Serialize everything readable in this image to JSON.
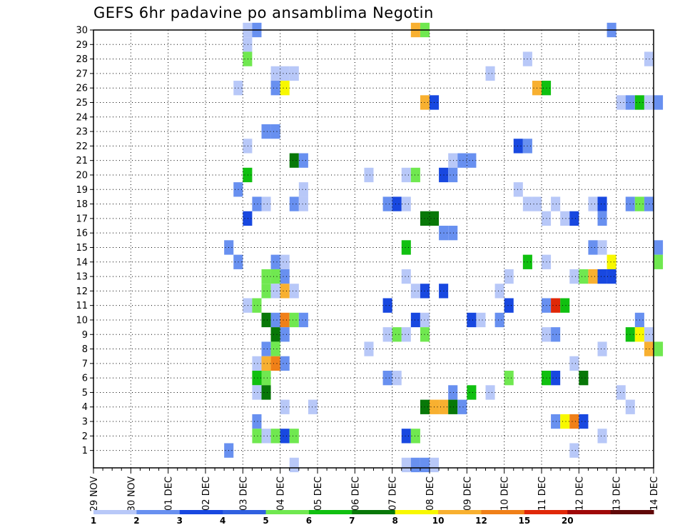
{
  "chart_data": {
    "type": "heatmap",
    "title": "GEFS 6hr padavine po ansamblima Negotin",
    "xlabel": "",
    "ylabel": "",
    "x_tick_labels": [
      "29 NOV",
      "30 NOV",
      "01 DEC",
      "02 DEC",
      "03 DEC",
      "04 DEC",
      "05 DEC",
      "06 DEC",
      "07 DEC",
      "08 DEC",
      "09 DEC",
      "10 DEC",
      "11 DEC",
      "12 DEC",
      "13 DEC",
      "14 DEC"
    ],
    "x_unit": "6-hour step (4 steps per day), step 0 = 29 NOV",
    "xlim": [
      0,
      60
    ],
    "y_tick_labels": [
      "1",
      "2",
      "3",
      "4",
      "5",
      "6",
      "7",
      "8",
      "9",
      "10",
      "11",
      "12",
      "13",
      "14",
      "15",
      "16",
      "17",
      "18",
      "19",
      "20",
      "21",
      "22",
      "23",
      "24",
      "25",
      "26",
      "27",
      "28",
      "29",
      "30"
    ],
    "ylim": [
      0,
      30
    ],
    "grid": true,
    "colorbar": {
      "labels": [
        "1",
        "2",
        "3",
        "4",
        "5",
        "6",
        "7",
        "8",
        "10",
        "12",
        "15",
        "20"
      ],
      "colors": [
        "#b8c8f8",
        "#6890f0",
        "#1848e0",
        "#3060e0",
        "#70e850",
        "#10c010",
        "#087808",
        "#f8f800",
        "#f8b030",
        "#f08018",
        "#e02808",
        "#a00808",
        "#600808"
      ]
    },
    "cells": [
      {
        "t": 16,
        "m": 30,
        "v": 1
      },
      {
        "t": 17,
        "m": 30,
        "v": 2
      },
      {
        "t": 34,
        "m": 30,
        "v": 10
      },
      {
        "t": 35,
        "m": 30,
        "v": 5
      },
      {
        "t": 55,
        "m": 30,
        "v": 2
      },
      {
        "t": 16,
        "m": 29,
        "v": 1
      },
      {
        "t": 16,
        "m": 28,
        "v": 5
      },
      {
        "t": 46,
        "m": 28,
        "v": 1
      },
      {
        "t": 59,
        "m": 28,
        "v": 1
      },
      {
        "t": 19,
        "m": 27,
        "v": 1
      },
      {
        "t": 20,
        "m": 27,
        "v": 1
      },
      {
        "t": 21,
        "m": 27,
        "v": 1
      },
      {
        "t": 42,
        "m": 27,
        "v": 1
      },
      {
        "t": 15,
        "m": 26,
        "v": 1
      },
      {
        "t": 19,
        "m": 26,
        "v": 2
      },
      {
        "t": 20,
        "m": 26,
        "v": 8
      },
      {
        "t": 47,
        "m": 26,
        "v": 10
      },
      {
        "t": 48,
        "m": 26,
        "v": 6
      },
      {
        "t": 35,
        "m": 25,
        "v": 10
      },
      {
        "t": 36,
        "m": 25,
        "v": 3
      },
      {
        "t": 56,
        "m": 25,
        "v": 1
      },
      {
        "t": 57,
        "m": 25,
        "v": 2
      },
      {
        "t": 58,
        "m": 25,
        "v": 6
      },
      {
        "t": 59,
        "m": 25,
        "v": 1
      },
      {
        "t": 60,
        "m": 25,
        "v": 2
      },
      {
        "t": 18,
        "m": 23,
        "v": 2
      },
      {
        "t": 19,
        "m": 23,
        "v": 2
      },
      {
        "t": 16,
        "m": 22,
        "v": 1
      },
      {
        "t": 45,
        "m": 22,
        "v": 3
      },
      {
        "t": 46,
        "m": 22,
        "v": 2
      },
      {
        "t": 21,
        "m": 21,
        "v": 7
      },
      {
        "t": 22,
        "m": 21,
        "v": 2
      },
      {
        "t": 38,
        "m": 21,
        "v": 1
      },
      {
        "t": 39,
        "m": 21,
        "v": 2
      },
      {
        "t": 40,
        "m": 21,
        "v": 2
      },
      {
        "t": 16,
        "m": 20,
        "v": 6
      },
      {
        "t": 29,
        "m": 20,
        "v": 1
      },
      {
        "t": 33,
        "m": 20,
        "v": 1
      },
      {
        "t": 34,
        "m": 20,
        "v": 5
      },
      {
        "t": 37,
        "m": 20,
        "v": 3
      },
      {
        "t": 38,
        "m": 20,
        "v": 2
      },
      {
        "t": 15,
        "m": 19,
        "v": 2
      },
      {
        "t": 22,
        "m": 19,
        "v": 1
      },
      {
        "t": 45,
        "m": 19,
        "v": 1
      },
      {
        "t": 17,
        "m": 18,
        "v": 2
      },
      {
        "t": 18,
        "m": 18,
        "v": 1
      },
      {
        "t": 21,
        "m": 18,
        "v": 2
      },
      {
        "t": 22,
        "m": 18,
        "v": 1
      },
      {
        "t": 31,
        "m": 18,
        "v": 2
      },
      {
        "t": 32,
        "m": 18,
        "v": 3
      },
      {
        "t": 33,
        "m": 18,
        "v": 1
      },
      {
        "t": 46,
        "m": 18,
        "v": 1
      },
      {
        "t": 47,
        "m": 18,
        "v": 1
      },
      {
        "t": 49,
        "m": 18,
        "v": 1
      },
      {
        "t": 53,
        "m": 18,
        "v": 1
      },
      {
        "t": 54,
        "m": 18,
        "v": 3
      },
      {
        "t": 57,
        "m": 18,
        "v": 2
      },
      {
        "t": 58,
        "m": 18,
        "v": 5
      },
      {
        "t": 59,
        "m": 18,
        "v": 2
      },
      {
        "t": 16,
        "m": 17,
        "v": 3
      },
      {
        "t": 35,
        "m": 17,
        "v": 7
      },
      {
        "t": 36,
        "m": 17,
        "v": 7
      },
      {
        "t": 48,
        "m": 17,
        "v": 1
      },
      {
        "t": 50,
        "m": 17,
        "v": 1
      },
      {
        "t": 51,
        "m": 17,
        "v": 3
      },
      {
        "t": 54,
        "m": 17,
        "v": 2
      },
      {
        "t": 37,
        "m": 16,
        "v": 2
      },
      {
        "t": 38,
        "m": 16,
        "v": 2
      },
      {
        "t": 14,
        "m": 15,
        "v": 2
      },
      {
        "t": 33,
        "m": 15,
        "v": 6
      },
      {
        "t": 53,
        "m": 15,
        "v": 2
      },
      {
        "t": 54,
        "m": 15,
        "v": 1
      },
      {
        "t": 60,
        "m": 15,
        "v": 2
      },
      {
        "t": 15,
        "m": 14,
        "v": 2
      },
      {
        "t": 19,
        "m": 14,
        "v": 2
      },
      {
        "t": 20,
        "m": 14,
        "v": 1
      },
      {
        "t": 46,
        "m": 14,
        "v": 6
      },
      {
        "t": 48,
        "m": 14,
        "v": 1
      },
      {
        "t": 55,
        "m": 14,
        "v": 8
      },
      {
        "t": 60,
        "m": 14,
        "v": 5
      },
      {
        "t": 18,
        "m": 13,
        "v": 5
      },
      {
        "t": 19,
        "m": 13,
        "v": 5
      },
      {
        "t": 20,
        "m": 13,
        "v": 2
      },
      {
        "t": 33,
        "m": 13,
        "v": 1
      },
      {
        "t": 44,
        "m": 13,
        "v": 1
      },
      {
        "t": 51,
        "m": 13,
        "v": 1
      },
      {
        "t": 52,
        "m": 13,
        "v": 5
      },
      {
        "t": 53,
        "m": 13,
        "v": 10
      },
      {
        "t": 54,
        "m": 13,
        "v": 3
      },
      {
        "t": 55,
        "m": 13,
        "v": 3
      },
      {
        "t": 18,
        "m": 12,
        "v": 5
      },
      {
        "t": 19,
        "m": 12,
        "v": 1
      },
      {
        "t": 20,
        "m": 12,
        "v": 10
      },
      {
        "t": 21,
        "m": 12,
        "v": 1
      },
      {
        "t": 34,
        "m": 12,
        "v": 1
      },
      {
        "t": 35,
        "m": 12,
        "v": 3
      },
      {
        "t": 37,
        "m": 12,
        "v": 3
      },
      {
        "t": 43,
        "m": 12,
        "v": 1
      },
      {
        "t": 16,
        "m": 11,
        "v": 1
      },
      {
        "t": 17,
        "m": 11,
        "v": 5
      },
      {
        "t": 31,
        "m": 11,
        "v": 3
      },
      {
        "t": 44,
        "m": 11,
        "v": 3
      },
      {
        "t": 48,
        "m": 11,
        "v": 2
      },
      {
        "t": 49,
        "m": 11,
        "v": 15
      },
      {
        "t": 50,
        "m": 11,
        "v": 6
      },
      {
        "t": 18,
        "m": 10,
        "v": 7
      },
      {
        "t": 19,
        "m": 10,
        "v": 2
      },
      {
        "t": 20,
        "m": 10,
        "v": 12
      },
      {
        "t": 21,
        "m": 10,
        "v": 5
      },
      {
        "t": 22,
        "m": 10,
        "v": 2
      },
      {
        "t": 34,
        "m": 10,
        "v": 3
      },
      {
        "t": 35,
        "m": 10,
        "v": 1
      },
      {
        "t": 40,
        "m": 10,
        "v": 3
      },
      {
        "t": 41,
        "m": 10,
        "v": 1
      },
      {
        "t": 43,
        "m": 10,
        "v": 2
      },
      {
        "t": 58,
        "m": 10,
        "v": 2
      },
      {
        "t": 19,
        "m": 9,
        "v": 7
      },
      {
        "t": 20,
        "m": 9,
        "v": 2
      },
      {
        "t": 31,
        "m": 9,
        "v": 1
      },
      {
        "t": 32,
        "m": 9,
        "v": 5
      },
      {
        "t": 33,
        "m": 9,
        "v": 1
      },
      {
        "t": 35,
        "m": 9,
        "v": 5
      },
      {
        "t": 48,
        "m": 9,
        "v": 1
      },
      {
        "t": 49,
        "m": 9,
        "v": 2
      },
      {
        "t": 57,
        "m": 9,
        "v": 6
      },
      {
        "t": 58,
        "m": 9,
        "v": 8
      },
      {
        "t": 59,
        "m": 9,
        "v": 1
      },
      {
        "t": 18,
        "m": 8,
        "v": 2
      },
      {
        "t": 19,
        "m": 8,
        "v": 5
      },
      {
        "t": 29,
        "m": 8,
        "v": 1
      },
      {
        "t": 54,
        "m": 8,
        "v": 1
      },
      {
        "t": 59,
        "m": 8,
        "v": 10
      },
      {
        "t": 60,
        "m": 8,
        "v": 5
      },
      {
        "t": 17,
        "m": 7,
        "v": 1
      },
      {
        "t": 18,
        "m": 7,
        "v": 10
      },
      {
        "t": 19,
        "m": 7,
        "v": 12
      },
      {
        "t": 20,
        "m": 7,
        "v": 2
      },
      {
        "t": 51,
        "m": 7,
        "v": 1
      },
      {
        "t": 17,
        "m": 6,
        "v": 6
      },
      {
        "t": 18,
        "m": 6,
        "v": 5
      },
      {
        "t": 31,
        "m": 6,
        "v": 2
      },
      {
        "t": 32,
        "m": 6,
        "v": 1
      },
      {
        "t": 44,
        "m": 6,
        "v": 5
      },
      {
        "t": 48,
        "m": 6,
        "v": 6
      },
      {
        "t": 49,
        "m": 6,
        "v": 3
      },
      {
        "t": 52,
        "m": 6,
        "v": 7
      },
      {
        "t": 17,
        "m": 5,
        "v": 1
      },
      {
        "t": 18,
        "m": 5,
        "v": 7
      },
      {
        "t": 38,
        "m": 5,
        "v": 2
      },
      {
        "t": 40,
        "m": 5,
        "v": 6
      },
      {
        "t": 42,
        "m": 5,
        "v": 1
      },
      {
        "t": 56,
        "m": 5,
        "v": 1
      },
      {
        "t": 20,
        "m": 4,
        "v": 1
      },
      {
        "t": 23,
        "m": 4,
        "v": 1
      },
      {
        "t": 35,
        "m": 4,
        "v": 7
      },
      {
        "t": 36,
        "m": 4,
        "v": 10
      },
      {
        "t": 37,
        "m": 4,
        "v": 10
      },
      {
        "t": 38,
        "m": 4,
        "v": 7
      },
      {
        "t": 39,
        "m": 4,
        "v": 2
      },
      {
        "t": 57,
        "m": 4,
        "v": 1
      },
      {
        "t": 17,
        "m": 3,
        "v": 2
      },
      {
        "t": 49,
        "m": 3,
        "v": 2
      },
      {
        "t": 50,
        "m": 3,
        "v": 8
      },
      {
        "t": 51,
        "m": 3,
        "v": 12
      },
      {
        "t": 52,
        "m": 3,
        "v": 3
      },
      {
        "t": 17,
        "m": 2,
        "v": 5
      },
      {
        "t": 18,
        "m": 2,
        "v": 1
      },
      {
        "t": 19,
        "m": 2,
        "v": 5
      },
      {
        "t": 20,
        "m": 2,
        "v": 3
      },
      {
        "t": 21,
        "m": 2,
        "v": 5
      },
      {
        "t": 33,
        "m": 2,
        "v": 3
      },
      {
        "t": 34,
        "m": 2,
        "v": 5
      },
      {
        "t": 54,
        "m": 2,
        "v": 1
      },
      {
        "t": 14,
        "m": 1,
        "v": 2
      },
      {
        "t": 51,
        "m": 1,
        "v": 1
      },
      {
        "t": 21,
        "m": 0,
        "v": 1
      },
      {
        "t": 33,
        "m": 0,
        "v": 1
      },
      {
        "t": 34,
        "m": 0,
        "v": 2
      },
      {
        "t": 35,
        "m": 0,
        "v": 2
      },
      {
        "t": 36,
        "m": 0,
        "v": 1
      }
    ]
  }
}
